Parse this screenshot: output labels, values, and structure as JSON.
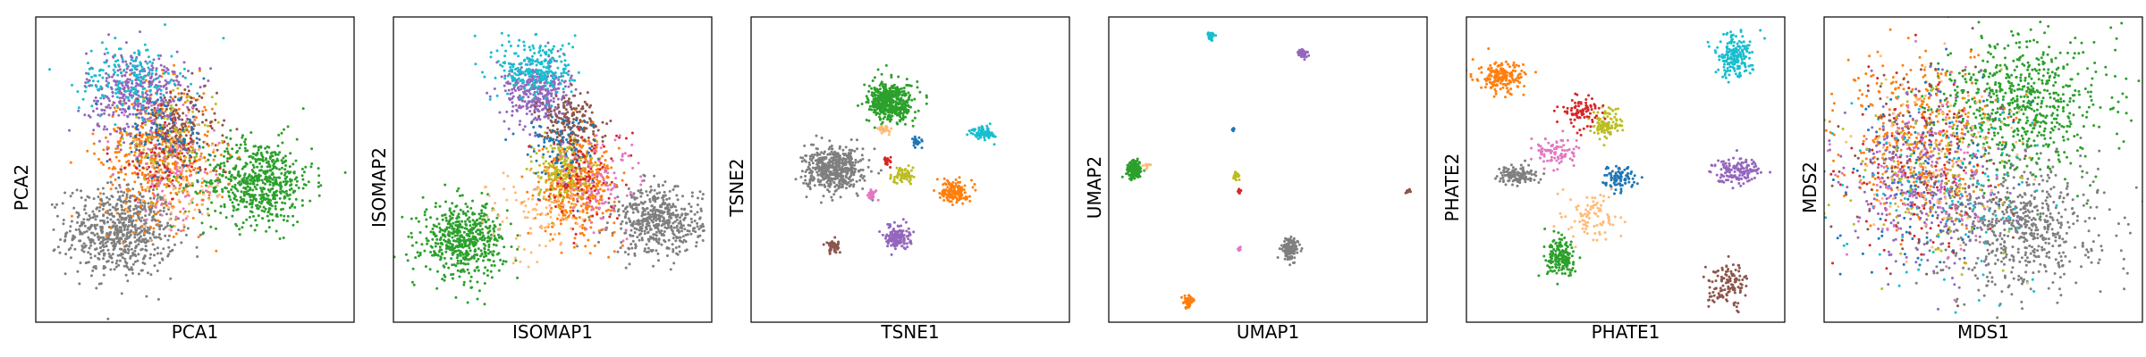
{
  "colors": {
    "blue": "#1f77b4",
    "orange": "#ff7f0e",
    "green": "#2ca02c",
    "red": "#d62728",
    "purple": "#9467bd",
    "brown": "#8c564b",
    "pink": "#e377c2",
    "gray": "#7f7f7f",
    "olive": "#bcbd22",
    "cyan": "#17becf",
    "peach": "#ffbb78"
  },
  "chart_data": [
    {
      "type": "scatter",
      "title": "",
      "xlabel": "PCA1",
      "ylabel": "PCA2",
      "grid": false,
      "xlim": [
        0,
        1
      ],
      "ylim": [
        0,
        1
      ],
      "series": [
        {
          "color": "gray",
          "center": [
            0.27,
            0.3
          ],
          "spread": [
            0.085,
            0.075
          ],
          "count": 700
        },
        {
          "color": "green",
          "center": [
            0.7,
            0.46
          ],
          "spread": [
            0.085,
            0.07
          ],
          "count": 600
        },
        {
          "color": "orange",
          "center": [
            0.38,
            0.55
          ],
          "spread": [
            0.09,
            0.11
          ],
          "count": 450
        },
        {
          "color": "purple",
          "center": [
            0.32,
            0.75
          ],
          "spread": [
            0.08,
            0.07
          ],
          "count": 400
        },
        {
          "color": "cyan",
          "center": [
            0.3,
            0.8
          ],
          "spread": [
            0.08,
            0.06
          ],
          "count": 180
        },
        {
          "color": "brown",
          "center": [
            0.45,
            0.62
          ],
          "spread": [
            0.06,
            0.07
          ],
          "count": 180
        },
        {
          "color": "pink",
          "center": [
            0.42,
            0.52
          ],
          "spread": [
            0.07,
            0.09
          ],
          "count": 120
        },
        {
          "color": "red",
          "center": [
            0.4,
            0.55
          ],
          "spread": [
            0.08,
            0.08
          ],
          "count": 100
        },
        {
          "color": "olive",
          "center": [
            0.42,
            0.58
          ],
          "spread": [
            0.07,
            0.07
          ],
          "count": 100
        },
        {
          "color": "blue",
          "center": [
            0.4,
            0.6
          ],
          "spread": [
            0.07,
            0.07
          ],
          "count": 100
        },
        {
          "color": "peach",
          "center": [
            0.45,
            0.45
          ],
          "spread": [
            0.08,
            0.08
          ],
          "count": 80
        }
      ]
    },
    {
      "type": "scatter",
      "title": "",
      "xlabel": "ISOMAP1",
      "ylabel": "ISOMAP2",
      "grid": false,
      "xlim": [
        0,
        1
      ],
      "ylim": [
        0,
        1
      ],
      "series": [
        {
          "color": "green",
          "center": [
            0.22,
            0.27
          ],
          "spread": [
            0.065,
            0.06
          ],
          "count": 550
        },
        {
          "color": "gray",
          "center": [
            0.83,
            0.33
          ],
          "spread": [
            0.07,
            0.055
          ],
          "count": 500
        },
        {
          "color": "orange",
          "center": [
            0.58,
            0.45
          ],
          "spread": [
            0.06,
            0.08
          ],
          "count": 400
        },
        {
          "color": "purple",
          "center": [
            0.45,
            0.75
          ],
          "spread": [
            0.05,
            0.05
          ],
          "count": 350
        },
        {
          "color": "cyan",
          "center": [
            0.45,
            0.83
          ],
          "spread": [
            0.06,
            0.05
          ],
          "count": 250
        },
        {
          "color": "olive",
          "center": [
            0.53,
            0.5
          ],
          "spread": [
            0.04,
            0.05
          ],
          "count": 200
        },
        {
          "color": "brown",
          "center": [
            0.55,
            0.66
          ],
          "spread": [
            0.05,
            0.04
          ],
          "count": 180
        },
        {
          "color": "blue",
          "center": [
            0.52,
            0.57
          ],
          "spread": [
            0.06,
            0.06
          ],
          "count": 100
        },
        {
          "color": "red",
          "center": [
            0.6,
            0.48
          ],
          "spread": [
            0.07,
            0.08
          ],
          "count": 100
        },
        {
          "color": "pink",
          "center": [
            0.65,
            0.45
          ],
          "spread": [
            0.07,
            0.08
          ],
          "count": 100
        },
        {
          "color": "peach",
          "center": [
            0.45,
            0.35
          ],
          "spread": [
            0.08,
            0.08
          ],
          "count": 100
        }
      ]
    },
    {
      "type": "scatter",
      "title": "",
      "xlabel": "TSNE1",
      "ylabel": "TSNE2",
      "grid": false,
      "xlim": [
        0,
        1
      ],
      "ylim": [
        0,
        1
      ],
      "series": [
        {
          "color": "green",
          "center": [
            0.44,
            0.72
          ],
          "spread": [
            0.035,
            0.032
          ],
          "count": 500
        },
        {
          "color": "gray",
          "center": [
            0.26,
            0.5
          ],
          "spread": [
            0.045,
            0.035
          ],
          "count": 500
        },
        {
          "color": "orange",
          "center": [
            0.64,
            0.43
          ],
          "spread": [
            0.02,
            0.02
          ],
          "count": 150
        },
        {
          "color": "purple",
          "center": [
            0.46,
            0.28
          ],
          "spread": [
            0.02,
            0.018
          ],
          "count": 150
        },
        {
          "color": "cyan",
          "center": [
            0.73,
            0.62
          ],
          "spread": [
            0.018,
            0.012
          ],
          "count": 80
        },
        {
          "color": "olive",
          "center": [
            0.48,
            0.48
          ],
          "spread": [
            0.018,
            0.012
          ],
          "count": 70
        },
        {
          "color": "brown",
          "center": [
            0.26,
            0.25
          ],
          "spread": [
            0.012,
            0.012
          ],
          "count": 60
        },
        {
          "color": "blue",
          "center": [
            0.52,
            0.59
          ],
          "spread": [
            0.008,
            0.008
          ],
          "count": 30
        },
        {
          "color": "red",
          "center": [
            0.43,
            0.53
          ],
          "spread": [
            0.006,
            0.008
          ],
          "count": 20
        },
        {
          "color": "pink",
          "center": [
            0.38,
            0.42
          ],
          "spread": [
            0.008,
            0.008
          ],
          "count": 25
        },
        {
          "color": "peach",
          "center": [
            0.42,
            0.63
          ],
          "spread": [
            0.01,
            0.01
          ],
          "count": 25
        }
      ]
    },
    {
      "type": "scatter",
      "title": "",
      "xlabel": "UMAP1",
      "ylabel": "UMAP2",
      "grid": false,
      "xlim": [
        0,
        1
      ],
      "ylim": [
        0,
        1
      ],
      "series": [
        {
          "color": "green",
          "center": [
            0.08,
            0.5
          ],
          "spread": [
            0.012,
            0.015
          ],
          "count": 150
        },
        {
          "color": "gray",
          "center": [
            0.57,
            0.24
          ],
          "spread": [
            0.012,
            0.018
          ],
          "count": 150
        },
        {
          "color": "orange",
          "center": [
            0.25,
            0.07
          ],
          "spread": [
            0.008,
            0.01
          ],
          "count": 60
        },
        {
          "color": "purple",
          "center": [
            0.61,
            0.88
          ],
          "spread": [
            0.008,
            0.008
          ],
          "count": 50
        },
        {
          "color": "cyan",
          "center": [
            0.32,
            0.94
          ],
          "spread": [
            0.006,
            0.006
          ],
          "count": 30
        },
        {
          "color": "olive",
          "center": [
            0.4,
            0.48
          ],
          "spread": [
            0.004,
            0.008
          ],
          "count": 25
        },
        {
          "color": "brown",
          "center": [
            0.94,
            0.43
          ],
          "spread": [
            0.005,
            0.004
          ],
          "count": 15
        },
        {
          "color": "blue",
          "center": [
            0.39,
            0.63
          ],
          "spread": [
            0.002,
            0.004
          ],
          "count": 8
        },
        {
          "color": "red",
          "center": [
            0.41,
            0.43
          ],
          "spread": [
            0.003,
            0.005
          ],
          "count": 8
        },
        {
          "color": "pink",
          "center": [
            0.41,
            0.24
          ],
          "spread": [
            0.003,
            0.003
          ],
          "count": 8
        },
        {
          "color": "peach",
          "center": [
            0.12,
            0.51
          ],
          "spread": [
            0.008,
            0.005
          ],
          "count": 10
        }
      ]
    },
    {
      "type": "scatter",
      "title": "",
      "xlabel": "PHATE1",
      "ylabel": "PHATE2",
      "grid": false,
      "xlim": [
        0,
        1
      ],
      "ylim": [
        0,
        1
      ],
      "series": [
        {
          "color": "cyan",
          "center": [
            0.84,
            0.87
          ],
          "spread": [
            0.03,
            0.035
          ],
          "count": 180
        },
        {
          "color": "orange",
          "center": [
            0.11,
            0.8
          ],
          "spread": [
            0.035,
            0.025
          ],
          "count": 180
        },
        {
          "color": "green",
          "center": [
            0.3,
            0.21
          ],
          "spread": [
            0.025,
            0.03
          ],
          "count": 180
        },
        {
          "color": "brown",
          "center": [
            0.82,
            0.12
          ],
          "spread": [
            0.03,
            0.035
          ],
          "count": 120
        },
        {
          "color": "purple",
          "center": [
            0.85,
            0.5
          ],
          "spread": [
            0.04,
            0.02
          ],
          "count": 150
        },
        {
          "color": "gray",
          "center": [
            0.16,
            0.48
          ],
          "spread": [
            0.03,
            0.015
          ],
          "count": 120
        },
        {
          "color": "olive",
          "center": [
            0.44,
            0.65
          ],
          "spread": [
            0.025,
            0.025
          ],
          "count": 110
        },
        {
          "color": "blue",
          "center": [
            0.48,
            0.47
          ],
          "spread": [
            0.025,
            0.02
          ],
          "count": 90
        },
        {
          "color": "red",
          "center": [
            0.36,
            0.69
          ],
          "spread": [
            0.03,
            0.025
          ],
          "count": 90
        },
        {
          "color": "pink",
          "center": [
            0.28,
            0.56
          ],
          "spread": [
            0.035,
            0.025
          ],
          "count": 90
        },
        {
          "color": "peach",
          "center": [
            0.4,
            0.34
          ],
          "spread": [
            0.04,
            0.04
          ],
          "count": 90
        }
      ]
    },
    {
      "type": "scatter",
      "title": "",
      "xlabel": "MDS1",
      "ylabel": "MDS2",
      "grid": false,
      "xlim": [
        0,
        1
      ],
      "ylim": [
        0,
        1
      ],
      "series": [
        {
          "color": "gray",
          "center": [
            0.62,
            0.32
          ],
          "spread": [
            0.13,
            0.11
          ],
          "count": 650
        },
        {
          "color": "green",
          "center": [
            0.62,
            0.72
          ],
          "spread": [
            0.13,
            0.11
          ],
          "count": 650
        },
        {
          "color": "orange",
          "center": [
            0.3,
            0.6
          ],
          "spread": [
            0.12,
            0.13
          ],
          "count": 350
        },
        {
          "color": "purple",
          "center": [
            0.3,
            0.45
          ],
          "spread": [
            0.12,
            0.14
          ],
          "count": 300
        },
        {
          "color": "blue",
          "center": [
            0.3,
            0.5
          ],
          "spread": [
            0.13,
            0.16
          ],
          "count": 120
        },
        {
          "color": "red",
          "center": [
            0.3,
            0.5
          ],
          "spread": [
            0.13,
            0.16
          ],
          "count": 120
        },
        {
          "color": "cyan",
          "center": [
            0.4,
            0.45
          ],
          "spread": [
            0.15,
            0.16
          ],
          "count": 120
        },
        {
          "color": "olive",
          "center": [
            0.35,
            0.5
          ],
          "spread": [
            0.14,
            0.16
          ],
          "count": 120
        },
        {
          "color": "brown",
          "center": [
            0.32,
            0.55
          ],
          "spread": [
            0.13,
            0.16
          ],
          "count": 120
        },
        {
          "color": "pink",
          "center": [
            0.3,
            0.48
          ],
          "spread": [
            0.13,
            0.16
          ],
          "count": 120
        },
        {
          "color": "peach",
          "center": [
            0.35,
            0.55
          ],
          "spread": [
            0.14,
            0.16
          ],
          "count": 100
        }
      ]
    }
  ]
}
